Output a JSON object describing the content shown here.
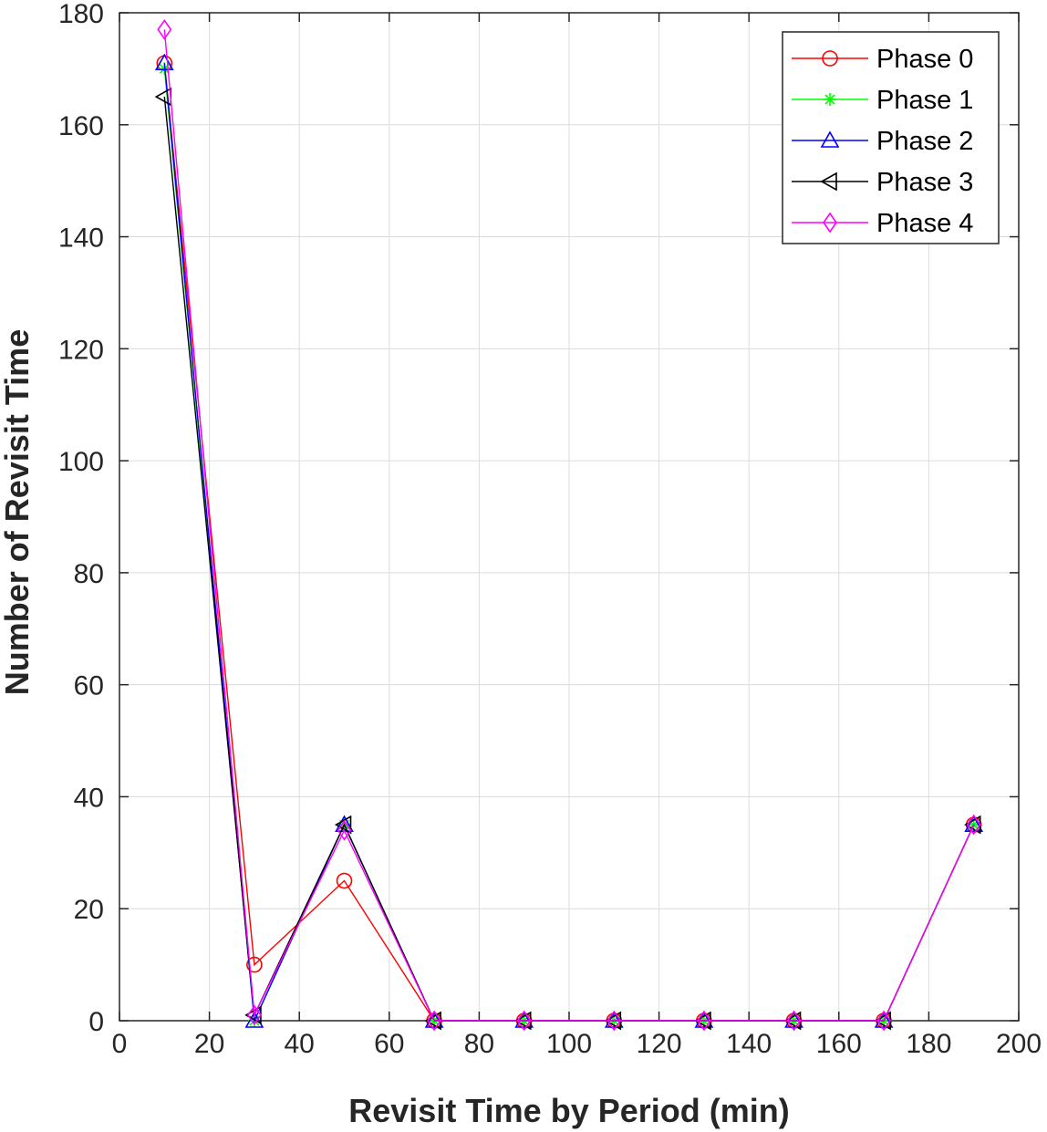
{
  "chart_data": {
    "type": "line",
    "title": "",
    "xlabel": "Revisit Time by Period (min)",
    "ylabel": "Number of Revisit Time",
    "xlim": [
      0,
      200
    ],
    "ylim": [
      0,
      180
    ],
    "xticks": [
      0,
      20,
      40,
      60,
      80,
      100,
      120,
      140,
      160,
      180,
      200
    ],
    "yticks": [
      0,
      20,
      40,
      60,
      80,
      100,
      120,
      140,
      160,
      180
    ],
    "grid": true,
    "legend_position": "top-right",
    "x": [
      10,
      30,
      50,
      70,
      90,
      110,
      130,
      150,
      170,
      190
    ],
    "series": [
      {
        "name": "Phase 0",
        "color": "#ff0000",
        "marker": "circle",
        "values": [
          171,
          10,
          25,
          0,
          0,
          0,
          0,
          0,
          0,
          35
        ]
      },
      {
        "name": "Phase 1",
        "color": "#00ff00",
        "marker": "asterisk",
        "values": [
          170,
          0,
          35,
          0,
          0,
          0,
          0,
          0,
          0,
          35
        ]
      },
      {
        "name": "Phase 2",
        "color": "#0000ff",
        "marker": "triangle-up",
        "values": [
          171,
          0,
          35,
          0,
          0,
          0,
          0,
          0,
          0,
          35
        ]
      },
      {
        "name": "Phase 3",
        "color": "#000000",
        "marker": "triangle-left",
        "values": [
          165,
          1,
          35,
          0,
          0,
          0,
          0,
          0,
          0,
          35
        ]
      },
      {
        "name": "Phase 4",
        "color": "#ff00ff",
        "marker": "diamond",
        "values": [
          177,
          1,
          34,
          0,
          0,
          0,
          0,
          0,
          0,
          35
        ]
      }
    ]
  }
}
